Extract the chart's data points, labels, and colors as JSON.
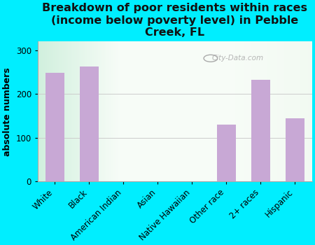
{
  "title": "Breakdown of poor residents within races\n(income below poverty level) in Pebble\nCreek, FL",
  "categories": [
    "White",
    "Black",
    "American Indian",
    "Asian",
    "Native Hawaiian",
    "Other race",
    "2+ races",
    "Hispanic"
  ],
  "values": [
    248,
    263,
    0,
    0,
    0,
    130,
    233,
    145
  ],
  "bar_color": "#c8a8d5",
  "ylabel": "absolute numbers",
  "ylim": [
    0,
    320
  ],
  "yticks": [
    0,
    100,
    200,
    300
  ],
  "background_outer": "#00eeff",
  "watermark": "City-Data.com",
  "title_fontsize": 11.5,
  "ylabel_fontsize": 9,
  "tick_fontsize": 8.5
}
